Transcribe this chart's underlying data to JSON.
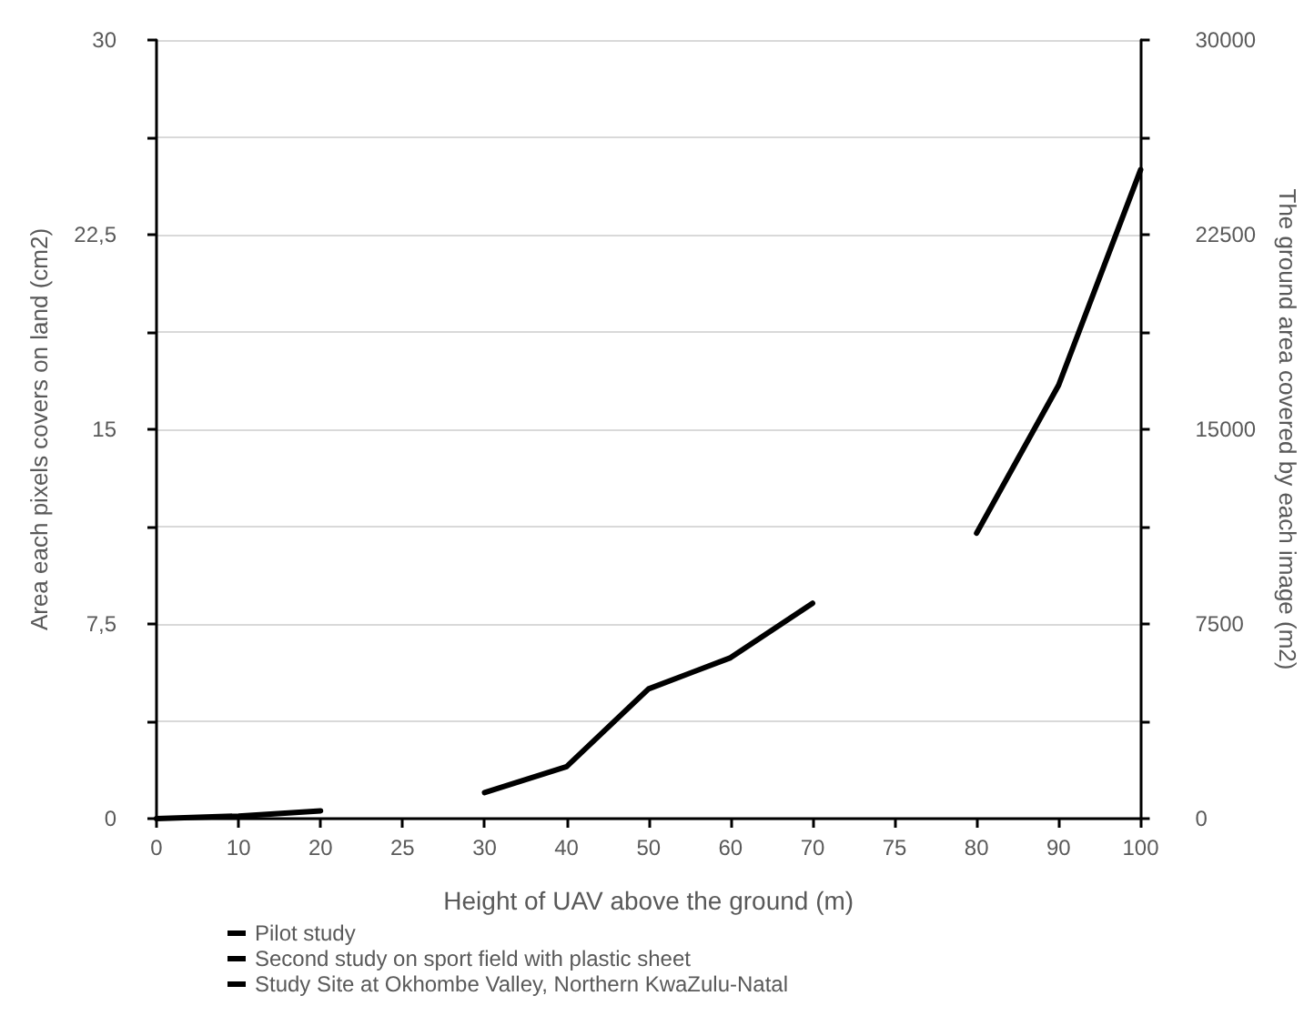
{
  "chart_data": {
    "type": "line",
    "xlabel": "Height of UAV above the ground (m)",
    "ylabel": "Area each pixels covers on land (cm2)",
    "y2label": "The ground area covered by each image (m2)",
    "categories": [
      "0",
      "10",
      "20",
      "25",
      "30",
      "40",
      "50",
      "60",
      "70",
      "75",
      "80",
      "90",
      "100"
    ],
    "series": [
      {
        "name": "Pilot study",
        "color": "#000000",
        "values": [
          0,
          0.1,
          0.3,
          null,
          null,
          null,
          null,
          null,
          null,
          null,
          null,
          null,
          null
        ]
      },
      {
        "name": "Second study on sport field with plastic sheet",
        "color": "#000000",
        "values": [
          null,
          null,
          null,
          null,
          1.0,
          2.0,
          5.0,
          6.2,
          8.3,
          null,
          null,
          null,
          null
        ]
      },
      {
        "name": "Study Site at Okhombe Valley, Northern KwaZulu-Natal",
        "color": "#000000",
        "values": [
          null,
          null,
          null,
          null,
          null,
          null,
          null,
          null,
          null,
          null,
          11.0,
          16.7,
          25.0
        ]
      }
    ],
    "ylim": [
      0,
      30
    ],
    "yticks": [
      0,
      {
        "value": 7.5,
        "label": "7,5"
      },
      15,
      {
        "value": 22.5,
        "label": "22,5"
      },
      30
    ],
    "y2lim": [
      0,
      30000
    ],
    "y2ticks": [
      0,
      7500,
      15000,
      22500,
      30000
    ],
    "grid": "y",
    "legend": "bottom",
    "marker": "none",
    "line_style": "solid"
  }
}
